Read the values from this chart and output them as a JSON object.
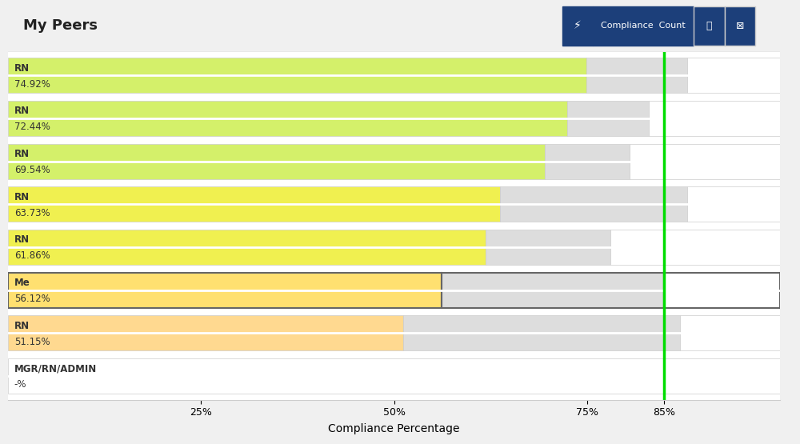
{
  "title": "My Peers",
  "xlabel": "Compliance Percentage",
  "categories": [
    "RN",
    "RN",
    "RN",
    "RN",
    "RN",
    "Me",
    "RN",
    "MGR/RN/ADMIN"
  ],
  "values": [
    74.92,
    72.44,
    69.54,
    63.73,
    61.86,
    56.12,
    51.15,
    null
  ],
  "labels": [
    "74.92%",
    "72.44%",
    "69.54%",
    "63.73%",
    "61.86%",
    "56.12%",
    "51.15%",
    "-%"
  ],
  "bar_colors": [
    "#d4f06a",
    "#d4f06a",
    "#d4f06a",
    "#f0f050",
    "#f0f050",
    "#ffe070",
    "#ffd990",
    "#ffffff"
  ],
  "gray_end": [
    88.0,
    83.0,
    80.5,
    88.0,
    78.0,
    85.0,
    87.0,
    0
  ],
  "total_bar": 100,
  "reference_line": 85,
  "reference_line_color": "#00dd00",
  "background_color": "#ffffff",
  "plot_bg_color": "#ffffff",
  "bar_bg_color": "#dddddd",
  "header_bg": "#f8f8f8",
  "me_row_index": 5,
  "figsize": [
    10.0,
    5.55
  ],
  "dpi": 100,
  "xticks": [
    25,
    50,
    75,
    85
  ],
  "xtick_labels": [
    "25%",
    "50%",
    "75%",
    "85%"
  ]
}
